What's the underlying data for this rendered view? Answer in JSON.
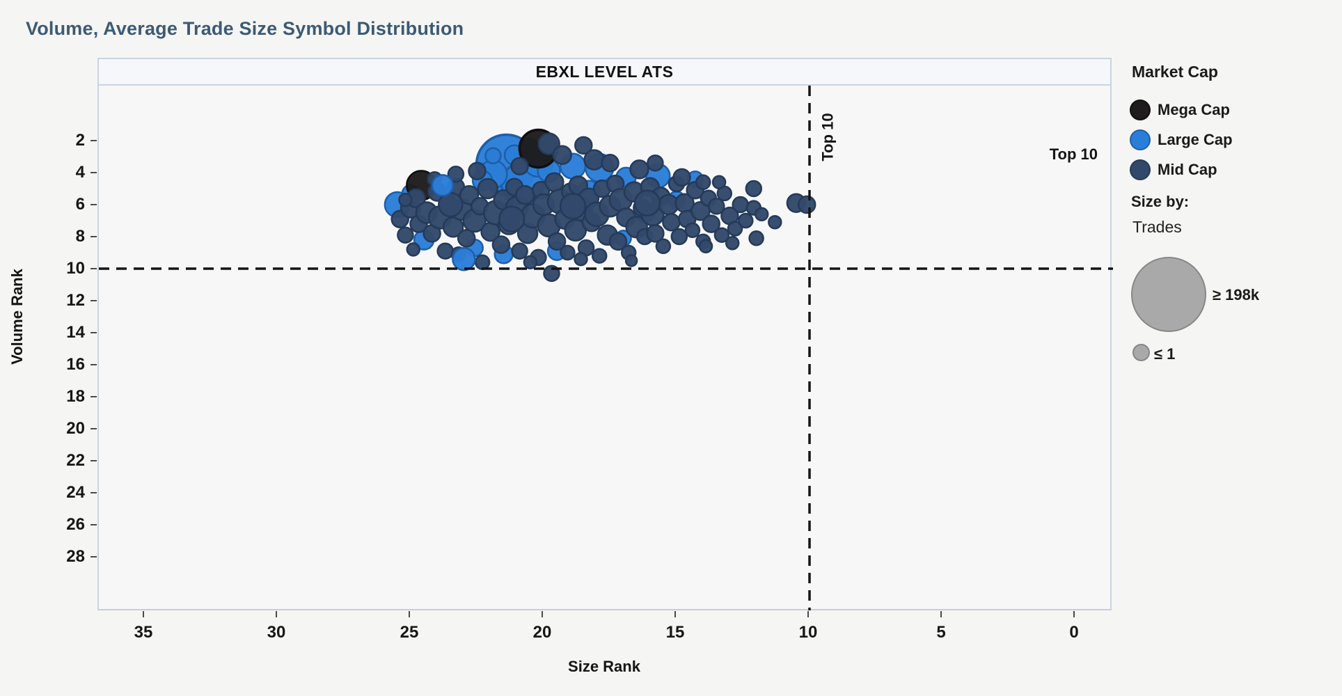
{
  "page_title": "Volume, Average Trade Size Symbol Distribution",
  "panel": {
    "header_label": "EBXL LEVEL ATS"
  },
  "axes": {
    "x": {
      "label": "Size Rank",
      "ticks": [
        35,
        30,
        25,
        20,
        15,
        10,
        5,
        0
      ]
    },
    "y": {
      "label": "Volume Rank",
      "ticks": [
        2,
        4,
        6,
        8,
        10,
        12,
        14,
        16,
        18,
        20,
        22,
        24,
        26,
        28
      ]
    }
  },
  "reference_lines": {
    "vertical": {
      "value": 10,
      "label": "Top 10"
    },
    "horizontal": {
      "value": 10,
      "label": "Top 10"
    }
  },
  "legend": {
    "market_cap": {
      "title": "Market Cap",
      "items": [
        {
          "label": "Mega Cap",
          "color": "#1e1c1d",
          "stroke": "#0f0f0f"
        },
        {
          "label": "Large Cap",
          "color": "#2b7ed8",
          "stroke": "#1d5fa8"
        },
        {
          "label": "Mid Cap",
          "color": "#33496b",
          "stroke": "#253a58"
        }
      ]
    },
    "size_by": {
      "title": "Size by:",
      "field": "Trades",
      "max_label": "≥ 198k",
      "min_label": "≤ 1",
      "swatch_color": "#a9a9a9"
    }
  },
  "colors": {
    "title_accent": "#3c5a74",
    "mid_cap_fill": "#33496b",
    "mid_cap_stroke": "#253a58",
    "large_cap_fill": "#2b7ed8",
    "large_cap_stroke": "#1d5fa8",
    "mega_cap_fill": "#1e1c1d",
    "mega_cap_stroke": "#0f0f0f",
    "dash_line": "#141414"
  },
  "chart_data": {
    "type": "scatter",
    "title": "EBXL LEVEL ATS",
    "xlabel": "Size Rank",
    "ylabel": "Volume Rank",
    "x_axis": {
      "ticks": [
        35,
        30,
        25,
        20,
        15,
        10,
        5,
        0
      ],
      "reversed": true,
      "range": [
        36.7,
        -1.4
      ],
      "grid": false
    },
    "y_axis": {
      "ticks": [
        2,
        4,
        6,
        8,
        10,
        12,
        14,
        16,
        18,
        20,
        22,
        24,
        26,
        28
      ],
      "reversed": true,
      "range": [
        -1.4,
        31.3
      ],
      "grid": false
    },
    "annotations": [
      {
        "type": "vline",
        "x": 10,
        "label": "Top 10",
        "style": "dashed"
      },
      {
        "type": "hline",
        "y": 10,
        "label": "Top 10",
        "style": "dashed"
      }
    ],
    "size_legend": {
      "field": "Trades",
      "max": "≥ 198k",
      "min": "≤ 1"
    },
    "categories": [
      "Mid Cap",
      "Large Cap",
      "Mega Cap"
    ],
    "point_format": [
      "size_rank",
      "volume_rank",
      "radius_px",
      "category_index"
    ],
    "points": [
      [
        21.4,
        3.5,
        43,
        1
      ],
      [
        20.8,
        4.7,
        30,
        1
      ],
      [
        21.9,
        4.1,
        20,
        1
      ],
      [
        21.1,
        2.9,
        14,
        1
      ],
      [
        20.2,
        3.3,
        22,
        1
      ],
      [
        19.8,
        3.9,
        16,
        1
      ],
      [
        22.3,
        4.5,
        14,
        1
      ],
      [
        20.5,
        2.4,
        12,
        1
      ],
      [
        25.5,
        6.0,
        18,
        1
      ],
      [
        25.0,
        5.3,
        12,
        1
      ],
      [
        24.5,
        8.2,
        14,
        1
      ],
      [
        22.6,
        8.7,
        12,
        1
      ],
      [
        21.5,
        9.1,
        13,
        1
      ],
      [
        19.5,
        8.9,
        13,
        1
      ],
      [
        18.9,
        3.6,
        18,
        1
      ],
      [
        17.9,
        3.7,
        20,
        1
      ],
      [
        16.9,
        4.3,
        14,
        1
      ],
      [
        15.7,
        4.2,
        17,
        1
      ],
      [
        15.0,
        5.7,
        12,
        1
      ],
      [
        14.3,
        4.4,
        11,
        1
      ],
      [
        17.0,
        8.1,
        11,
        1
      ],
      [
        18.3,
        5.2,
        16,
        1
      ],
      [
        16.2,
        6.5,
        14,
        1
      ],
      [
        24.6,
        4.8,
        21,
        2
      ],
      [
        20.2,
        2.5,
        27,
        2
      ],
      [
        25.4,
        6.9,
        12,
        0
      ],
      [
        25.2,
        7.9,
        11,
        0
      ],
      [
        25.0,
        6.2,
        14,
        0
      ],
      [
        24.8,
        5.6,
        13,
        0
      ],
      [
        24.7,
        7.2,
        12,
        0
      ],
      [
        24.4,
        6.5,
        15,
        0
      ],
      [
        24.2,
        7.8,
        12,
        0
      ],
      [
        24.0,
        5.2,
        13,
        0
      ],
      [
        23.9,
        6.8,
        16,
        0
      ],
      [
        23.7,
        8.9,
        11,
        0
      ],
      [
        23.6,
        5.9,
        12,
        0
      ],
      [
        23.4,
        7.4,
        14,
        0
      ],
      [
        23.3,
        4.9,
        12,
        0
      ],
      [
        23.1,
        6.3,
        15,
        0
      ],
      [
        22.9,
        8.1,
        12,
        0
      ],
      [
        22.8,
        5.4,
        13,
        0
      ],
      [
        22.6,
        7.0,
        16,
        0
      ],
      [
        22.4,
        6.1,
        12,
        0
      ],
      [
        22.3,
        9.6,
        10,
        0
      ],
      [
        22.1,
        5.0,
        14,
        0
      ],
      [
        22.0,
        7.7,
        13,
        0
      ],
      [
        21.8,
        6.5,
        17,
        0
      ],
      [
        21.6,
        8.5,
        12,
        0
      ],
      [
        21.5,
        5.7,
        14,
        0
      ],
      [
        21.3,
        7.2,
        15,
        0
      ],
      [
        21.1,
        4.9,
        12,
        0
      ],
      [
        21.0,
        6.2,
        16,
        0
      ],
      [
        20.9,
        8.9,
        11,
        0
      ],
      [
        20.7,
        5.4,
        13,
        0
      ],
      [
        20.6,
        7.8,
        14,
        0
      ],
      [
        20.4,
        6.7,
        17,
        0
      ],
      [
        20.2,
        9.3,
        11,
        0
      ],
      [
        20.1,
        5.1,
        12,
        0
      ],
      [
        20.0,
        6.0,
        15,
        0
      ],
      [
        19.8,
        7.3,
        16,
        0
      ],
      [
        19.7,
        10.3,
        11,
        0
      ],
      [
        19.6,
        4.6,
        13,
        0
      ],
      [
        19.5,
        8.3,
        12,
        0
      ],
      [
        19.4,
        5.8,
        17,
        0
      ],
      [
        19.2,
        6.9,
        14,
        0
      ],
      [
        19.1,
        9.0,
        10,
        0
      ],
      [
        19.0,
        5.2,
        12,
        0
      ],
      [
        18.8,
        7.6,
        15,
        0
      ],
      [
        18.7,
        4.8,
        13,
        0
      ],
      [
        18.6,
        6.3,
        16,
        0
      ],
      [
        18.4,
        8.7,
        11,
        0
      ],
      [
        18.3,
        5.6,
        14,
        0
      ],
      [
        18.2,
        7.1,
        13,
        0
      ],
      [
        18.0,
        6.6,
        17,
        0
      ],
      [
        17.9,
        9.2,
        10,
        0
      ],
      [
        17.8,
        5.0,
        12,
        0
      ],
      [
        17.6,
        7.9,
        14,
        0
      ],
      [
        17.5,
        6.1,
        15,
        0
      ],
      [
        17.3,
        4.7,
        12,
        0
      ],
      [
        17.2,
        8.3,
        12,
        0
      ],
      [
        17.1,
        5.7,
        16,
        0
      ],
      [
        16.9,
        6.8,
        13,
        0
      ],
      [
        16.8,
        9.0,
        10,
        0
      ],
      [
        16.6,
        5.2,
        14,
        0
      ],
      [
        16.5,
        7.4,
        15,
        0
      ],
      [
        16.3,
        6.2,
        12,
        0
      ],
      [
        16.2,
        8.0,
        11,
        0
      ],
      [
        16.0,
        4.9,
        13,
        0
      ],
      [
        15.9,
        6.6,
        16,
        0
      ],
      [
        15.8,
        7.8,
        12,
        0
      ],
      [
        15.6,
        5.5,
        13,
        0
      ],
      [
        15.5,
        8.6,
        10,
        0
      ],
      [
        15.3,
        6.0,
        14,
        0
      ],
      [
        15.2,
        7.1,
        12,
        0
      ],
      [
        15.0,
        4.7,
        11,
        0
      ],
      [
        14.9,
        8.0,
        11,
        0
      ],
      [
        14.7,
        5.9,
        13,
        0
      ],
      [
        14.6,
        6.9,
        12,
        0
      ],
      [
        14.4,
        7.6,
        10,
        0
      ],
      [
        14.3,
        5.1,
        12,
        0
      ],
      [
        14.1,
        6.4,
        13,
        0
      ],
      [
        14.0,
        8.3,
        10,
        0
      ],
      [
        13.8,
        5.6,
        11,
        0
      ],
      [
        13.7,
        7.2,
        12,
        0
      ],
      [
        13.5,
        6.1,
        11,
        0
      ],
      [
        13.3,
        7.9,
        10,
        0
      ],
      [
        13.2,
        5.3,
        10,
        0
      ],
      [
        13.0,
        6.7,
        12,
        0
      ],
      [
        12.8,
        7.5,
        10,
        0
      ],
      [
        12.6,
        6.0,
        11,
        0
      ],
      [
        12.4,
        7.0,
        10,
        0
      ],
      [
        12.1,
        5.0,
        11,
        0
      ],
      [
        12.1,
        6.2,
        10,
        0
      ],
      [
        12.0,
        8.1,
        10,
        0
      ],
      [
        11.8,
        6.6,
        9,
        0
      ],
      [
        11.3,
        7.1,
        9,
        0
      ],
      [
        10.5,
        5.9,
        13,
        0
      ],
      [
        10.1,
        6.0,
        12,
        0
      ],
      [
        19.8,
        2.2,
        15,
        0
      ],
      [
        19.3,
        2.9,
        13,
        0
      ],
      [
        18.5,
        2.3,
        12,
        0
      ],
      [
        18.1,
        3.2,
        14,
        0
      ],
      [
        17.5,
        3.4,
        12,
        0
      ],
      [
        21.9,
        2.9,
        10,
        0
      ],
      [
        22.5,
        3.9,
        12,
        0
      ],
      [
        23.3,
        4.1,
        11,
        0
      ],
      [
        24.1,
        4.4,
        10,
        0
      ],
      [
        25.2,
        5.7,
        9,
        0
      ],
      [
        16.4,
        3.8,
        13,
        0
      ],
      [
        15.8,
        3.4,
        11,
        0
      ],
      [
        14.8,
        4.3,
        12,
        0
      ],
      [
        14.0,
        4.6,
        10,
        0
      ],
      [
        13.4,
        4.6,
        9,
        0
      ],
      [
        20.9,
        3.6,
        12,
        0
      ],
      [
        16.1,
        5.9,
        18,
        0
      ],
      [
        18.9,
        6.1,
        18,
        0
      ],
      [
        21.2,
        6.9,
        18,
        0
      ],
      [
        23.5,
        6.0,
        17,
        0
      ],
      [
        24.9,
        8.8,
        9,
        0
      ],
      [
        23.2,
        9.1,
        10,
        0
      ],
      [
        20.5,
        9.6,
        9,
        0
      ],
      [
        18.6,
        9.4,
        9,
        0
      ],
      [
        16.7,
        9.5,
        8,
        0
      ],
      [
        13.9,
        8.6,
        9,
        0
      ],
      [
        12.9,
        8.4,
        9,
        0
      ],
      [
        23.8,
        4.8,
        15,
        1
      ],
      [
        23.0,
        9.4,
        16,
        1
      ],
      [
        21.9,
        2.95,
        11,
        1
      ]
    ]
  }
}
